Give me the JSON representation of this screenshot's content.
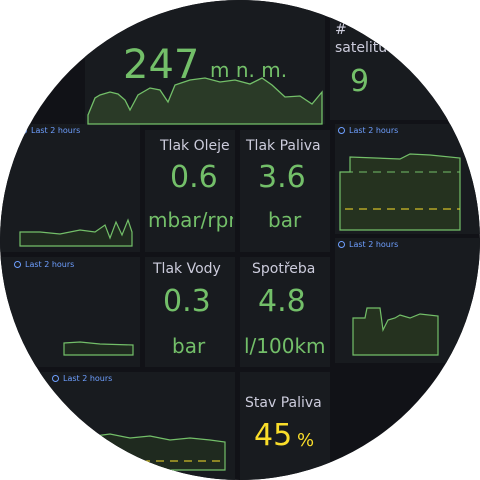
{
  "panels": {
    "altitude": {
      "value": 247,
      "unit": "m n. m."
    },
    "satellites": {
      "title_lines": [
        "#",
        "satelitů"
      ],
      "value": 9
    },
    "time_ranges": [
      "Last 2 hours",
      "Last 2 hours",
      "Last 2 hours",
      "Last 2 hours",
      "Last 2 hours"
    ],
    "oil_pressure": {
      "title": "Tlak Oleje",
      "value": 0.6,
      "unit": "mbar/rpm"
    },
    "fuel_pressure": {
      "title": "Tlak Paliva",
      "value": 3.6,
      "unit": "bar"
    },
    "water_pressure": {
      "title": "Tlak Vody",
      "value": 0.3,
      "unit": "bar"
    },
    "consumption": {
      "title": "Spotřeba",
      "value": 4.8,
      "unit": "l/100km"
    },
    "fuel_level": {
      "title": "Stav Paliva",
      "value": 45,
      "unit": "%"
    }
  }
}
